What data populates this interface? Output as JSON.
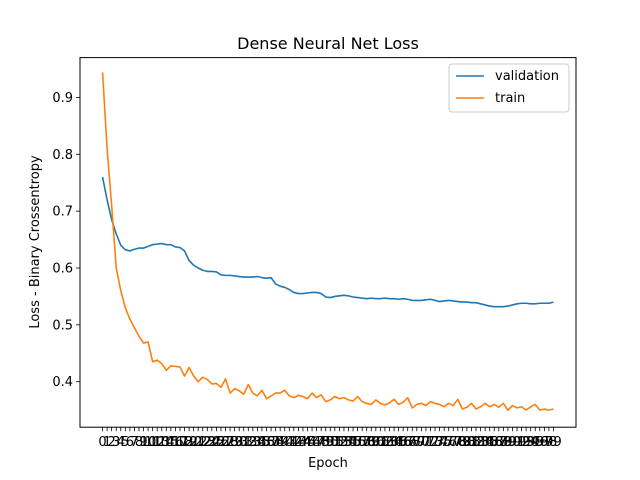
{
  "chart_data": {
    "type": "line",
    "title": "Dense Neural Net Loss",
    "xlabel": "Epoch",
    "ylabel": "Loss - Binary Crossentropy",
    "xlim": [
      0,
      99
    ],
    "ylim": [
      0.32,
      0.97
    ],
    "yticks": [
      0.4,
      0.5,
      0.6,
      0.7,
      0.8,
      0.9
    ],
    "xticks": [
      0,
      1,
      2,
      3,
      4,
      5,
      6,
      7,
      8,
      9,
      10,
      11,
      12,
      13,
      14,
      15,
      16,
      17,
      18,
      19,
      20,
      21,
      22,
      23,
      24,
      25,
      26,
      27,
      28,
      29,
      30,
      31,
      32,
      33,
      34,
      35,
      36,
      37,
      38,
      39,
      40,
      41,
      42,
      43,
      44,
      45,
      46,
      47,
      48,
      49,
      50,
      51,
      52,
      53,
      54,
      55,
      56,
      57,
      58,
      59,
      60,
      61,
      62,
      63,
      64,
      65,
      66,
      67,
      68,
      69,
      70,
      71,
      72,
      73,
      74,
      75,
      76,
      77,
      78,
      79,
      80,
      81,
      82,
      83,
      84,
      85,
      86,
      87,
      88,
      89,
      90,
      91,
      92,
      93,
      94,
      95,
      96,
      97,
      98,
      99
    ],
    "grid": false,
    "legend_position": "top-right",
    "series": [
      {
        "name": "validation",
        "color": "#1f77b4",
        "values": [
          0.76,
          0.72,
          0.685,
          0.66,
          0.64,
          0.632,
          0.63,
          0.633,
          0.635,
          0.635,
          0.638,
          0.641,
          0.642,
          0.643,
          0.641,
          0.641,
          0.637,
          0.636,
          0.63,
          0.613,
          0.605,
          0.6,
          0.596,
          0.594,
          0.594,
          0.593,
          0.588,
          0.587,
          0.587,
          0.586,
          0.585,
          0.584,
          0.584,
          0.584,
          0.585,
          0.583,
          0.582,
          0.583,
          0.572,
          0.568,
          0.566,
          0.562,
          0.557,
          0.555,
          0.555,
          0.556,
          0.557,
          0.557,
          0.555,
          0.549,
          0.548,
          0.55,
          0.551,
          0.552,
          0.551,
          0.549,
          0.548,
          0.547,
          0.546,
          0.547,
          0.546,
          0.546,
          0.547,
          0.546,
          0.546,
          0.545,
          0.546,
          0.545,
          0.543,
          0.543,
          0.543,
          0.544,
          0.545,
          0.543,
          0.541,
          0.542,
          0.543,
          0.542,
          0.541,
          0.54,
          0.54,
          0.539,
          0.539,
          0.537,
          0.535,
          0.533,
          0.532,
          0.532,
          0.532,
          0.533,
          0.535,
          0.537,
          0.538,
          0.538,
          0.537,
          0.537,
          0.538,
          0.538,
          0.538,
          0.54
        ]
      },
      {
        "name": "train",
        "color": "#ff7f0e",
        "values": [
          0.944,
          0.81,
          0.71,
          0.6,
          0.56,
          0.53,
          0.51,
          0.495,
          0.48,
          0.468,
          0.47,
          0.435,
          0.438,
          0.432,
          0.42,
          0.428,
          0.427,
          0.426,
          0.41,
          0.425,
          0.41,
          0.4,
          0.408,
          0.404,
          0.396,
          0.397,
          0.39,
          0.405,
          0.38,
          0.388,
          0.384,
          0.378,
          0.395,
          0.38,
          0.375,
          0.385,
          0.37,
          0.375,
          0.38,
          0.38,
          0.385,
          0.375,
          0.372,
          0.376,
          0.374,
          0.37,
          0.38,
          0.372,
          0.377,
          0.365,
          0.368,
          0.374,
          0.37,
          0.372,
          0.368,
          0.366,
          0.374,
          0.365,
          0.362,
          0.36,
          0.368,
          0.362,
          0.359,
          0.363,
          0.369,
          0.36,
          0.364,
          0.372,
          0.354,
          0.36,
          0.362,
          0.358,
          0.365,
          0.362,
          0.36,
          0.356,
          0.362,
          0.358,
          0.369,
          0.352,
          0.355,
          0.362,
          0.352,
          0.356,
          0.362,
          0.356,
          0.36,
          0.355,
          0.362,
          0.35,
          0.358,
          0.354,
          0.356,
          0.35,
          0.356,
          0.36,
          0.35,
          0.352,
          0.35,
          0.352
        ]
      }
    ]
  }
}
